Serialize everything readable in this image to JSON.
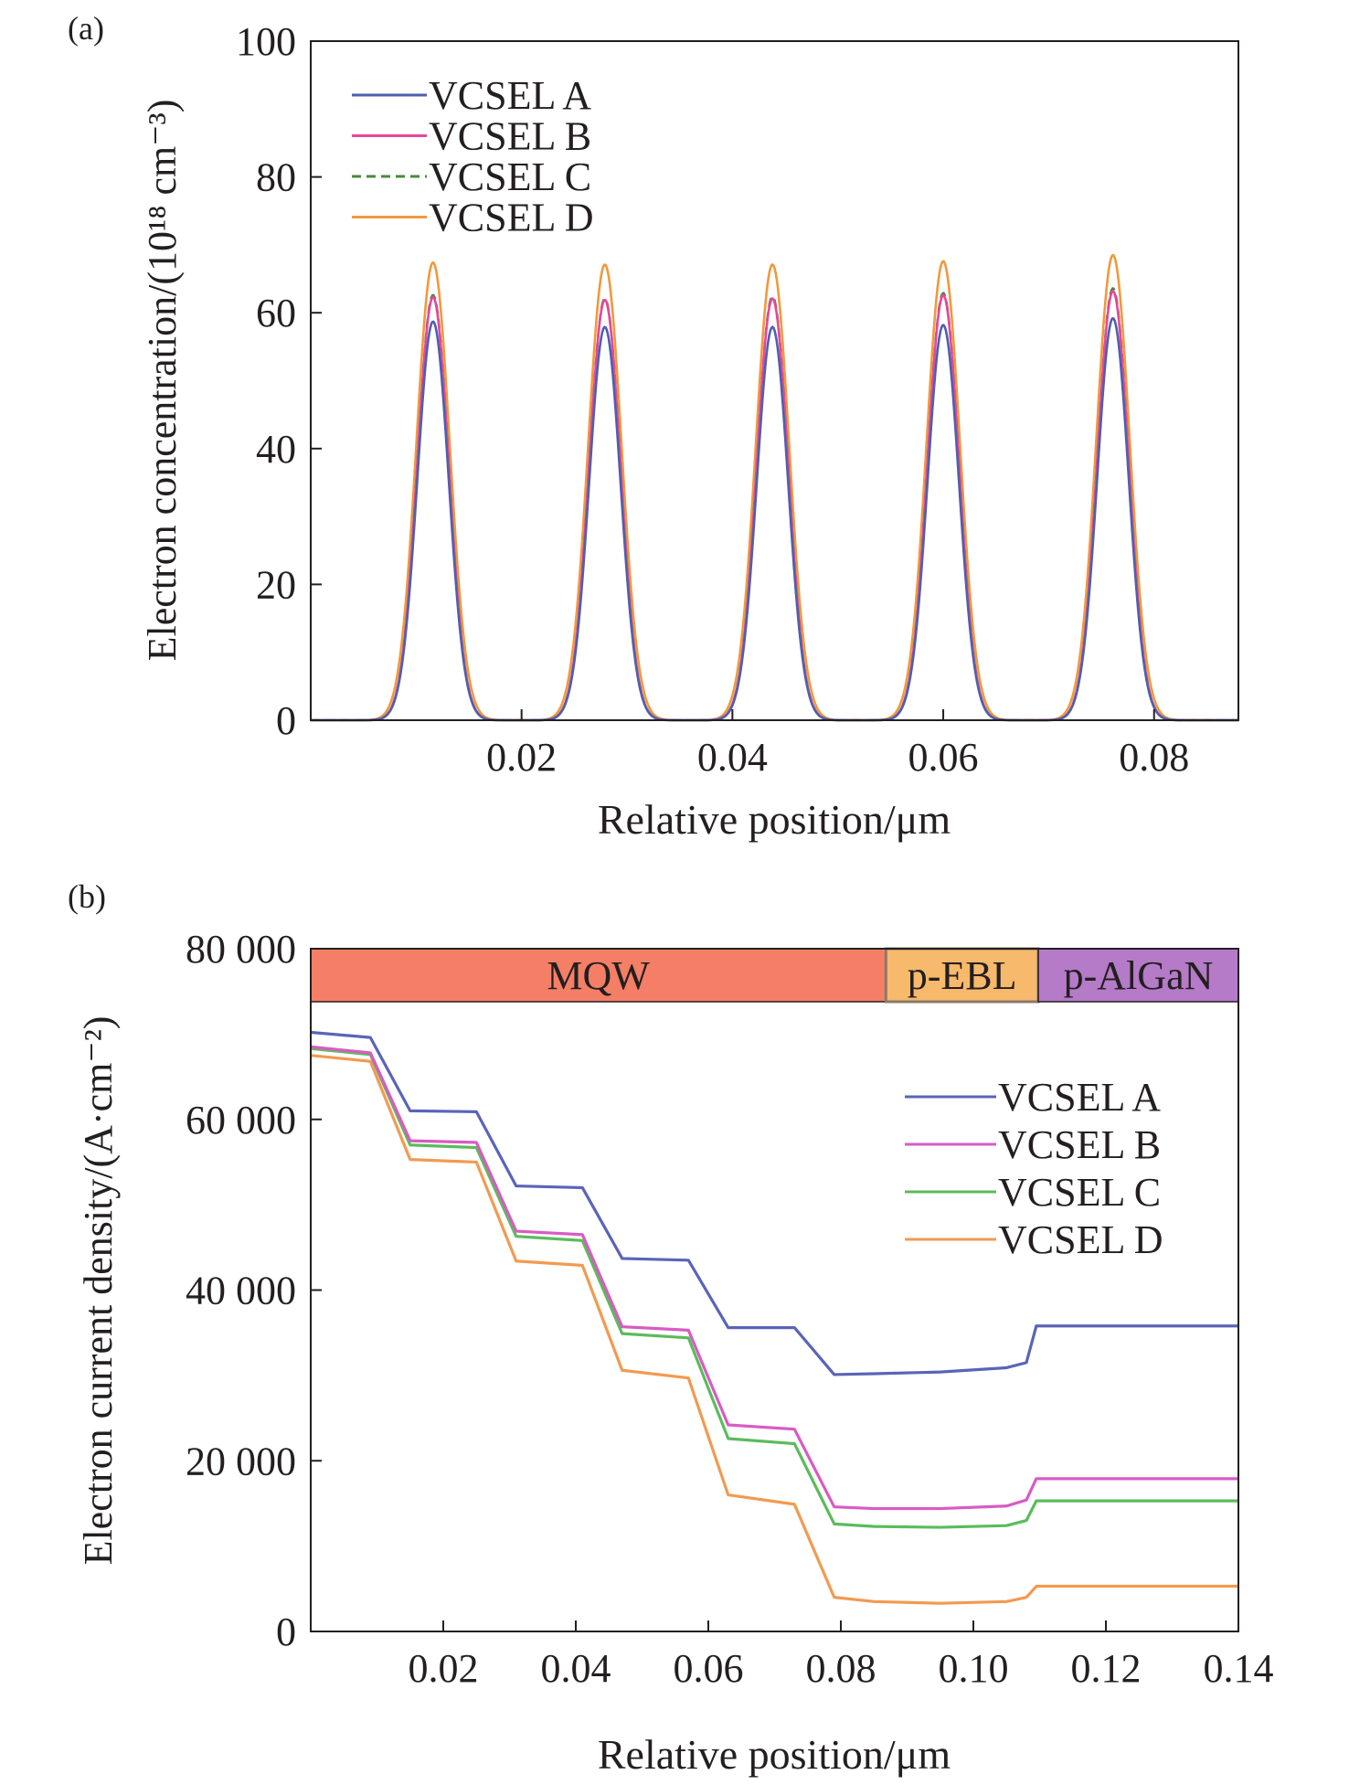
{
  "chart_data": [
    {
      "panel_label": "(a)",
      "type": "line",
      "xlabel": "Relative position/μm",
      "ylabel": "Electron concentration/(10¹⁸ cm⁻³)",
      "xlim": [
        0.0,
        0.088
      ],
      "ylim": [
        0,
        100
      ],
      "x_ticks": [
        0.02,
        0.04,
        0.06,
        0.08
      ],
      "x_tick_labels": [
        "0.02",
        "0.04",
        "0.06",
        "0.08"
      ],
      "y_ticks": [
        0,
        20,
        40,
        60,
        80,
        100
      ],
      "y_tick_labels": [
        "0",
        "20",
        "40",
        "60",
        "80",
        "100"
      ],
      "grid": false,
      "legend_position": "top-left",
      "peak_positions": [
        0.0116,
        0.0279,
        0.0438,
        0.06,
        0.0761
      ],
      "peak_halfwidth": 0.0021,
      "series": [
        {
          "name": "VCSEL A",
          "color": "#4f5fae",
          "dash": "solid",
          "peak_values": [
            58.7,
            57.9,
            57.9,
            58.2,
            59.2
          ]
        },
        {
          "name": "VCSEL B",
          "color": "#e6479a",
          "dash": "solid",
          "peak_values": [
            62.3,
            61.9,
            62.1,
            62.6,
            63.2
          ]
        },
        {
          "name": "VCSEL C",
          "color": "#4a8a3a",
          "dash": "dashed",
          "peak_values": [
            62.6,
            62.1,
            62.4,
            62.9,
            63.6
          ]
        },
        {
          "name": "VCSEL D",
          "color": "#f0993c",
          "dash": "solid",
          "peak_values": [
            67.4,
            67.1,
            67.1,
            67.6,
            68.5
          ]
        }
      ]
    },
    {
      "panel_label": "(b)",
      "type": "line",
      "xlabel": "Relative position/μm",
      "ylabel": "Electron current density/(A·cm⁻²)",
      "xlim": [
        0.0,
        0.14
      ],
      "ylim": [
        0,
        80000
      ],
      "x_ticks": [
        0.02,
        0.04,
        0.06,
        0.08,
        0.1,
        0.12,
        0.14
      ],
      "x_tick_labels": [
        "0.02",
        "0.04",
        "0.06",
        "0.08",
        "0.10",
        "0.12",
        "0.14"
      ],
      "y_ticks": [
        0,
        20000,
        40000,
        60000,
        80000
      ],
      "y_tick_labels": [
        "0",
        "20 000",
        "40 000",
        "60 000",
        "80 000"
      ],
      "grid": false,
      "legend_position": "right",
      "regions": [
        {
          "label": "MQW",
          "x_start": 0.0,
          "x_end": 0.0868,
          "color": "#f47f66"
        },
        {
          "label": "p-EBL",
          "x_start": 0.0868,
          "x_end": 0.1098,
          "color": "#f7b96b"
        },
        {
          "label": "p-AlGaN",
          "x_start": 0.1098,
          "x_end": 0.14,
          "color": "#b57ac8"
        }
      ],
      "series": [
        {
          "name": "VCSEL A",
          "color": "#5a64b8",
          "x": [
            0.0,
            0.009,
            0.015,
            0.025,
            0.031,
            0.041,
            0.047,
            0.057,
            0.063,
            0.073,
            0.079,
            0.085,
            0.095,
            0.105,
            0.108,
            0.1095,
            0.14
          ],
          "y": [
            70200,
            69600,
            61000,
            60900,
            52200,
            52000,
            43700,
            43500,
            35600,
            35600,
            30100,
            30200,
            30400,
            30900,
            31500,
            35800,
            35800
          ]
        },
        {
          "name": "VCSEL B",
          "color": "#d95bc3",
          "x": [
            0.0,
            0.009,
            0.015,
            0.025,
            0.031,
            0.041,
            0.047,
            0.057,
            0.063,
            0.073,
            0.079,
            0.085,
            0.095,
            0.105,
            0.108,
            0.1095,
            0.14
          ],
          "y": [
            68500,
            67800,
            57500,
            57300,
            46900,
            46500,
            35700,
            35300,
            24200,
            23700,
            14600,
            14400,
            14400,
            14700,
            15400,
            17900,
            17900
          ]
        },
        {
          "name": "VCSEL C",
          "color": "#5bbb5b",
          "x": [
            0.0,
            0.009,
            0.015,
            0.025,
            0.031,
            0.041,
            0.047,
            0.057,
            0.063,
            0.073,
            0.079,
            0.085,
            0.095,
            0.105,
            0.108,
            0.1095,
            0.14
          ],
          "y": [
            68300,
            67600,
            57000,
            56700,
            46300,
            45800,
            34900,
            34400,
            22600,
            22000,
            12600,
            12300,
            12200,
            12400,
            13000,
            15300,
            15300
          ]
        },
        {
          "name": "VCSEL D",
          "color": "#f29a50",
          "x": [
            0.0,
            0.009,
            0.015,
            0.025,
            0.031,
            0.041,
            0.047,
            0.057,
            0.063,
            0.073,
            0.079,
            0.085,
            0.095,
            0.105,
            0.108,
            0.1095,
            0.14
          ],
          "y": [
            67500,
            66800,
            55300,
            55000,
            43400,
            42900,
            30600,
            29700,
            16000,
            14900,
            4000,
            3500,
            3300,
            3500,
            4000,
            5300,
            5300
          ]
        }
      ]
    }
  ]
}
